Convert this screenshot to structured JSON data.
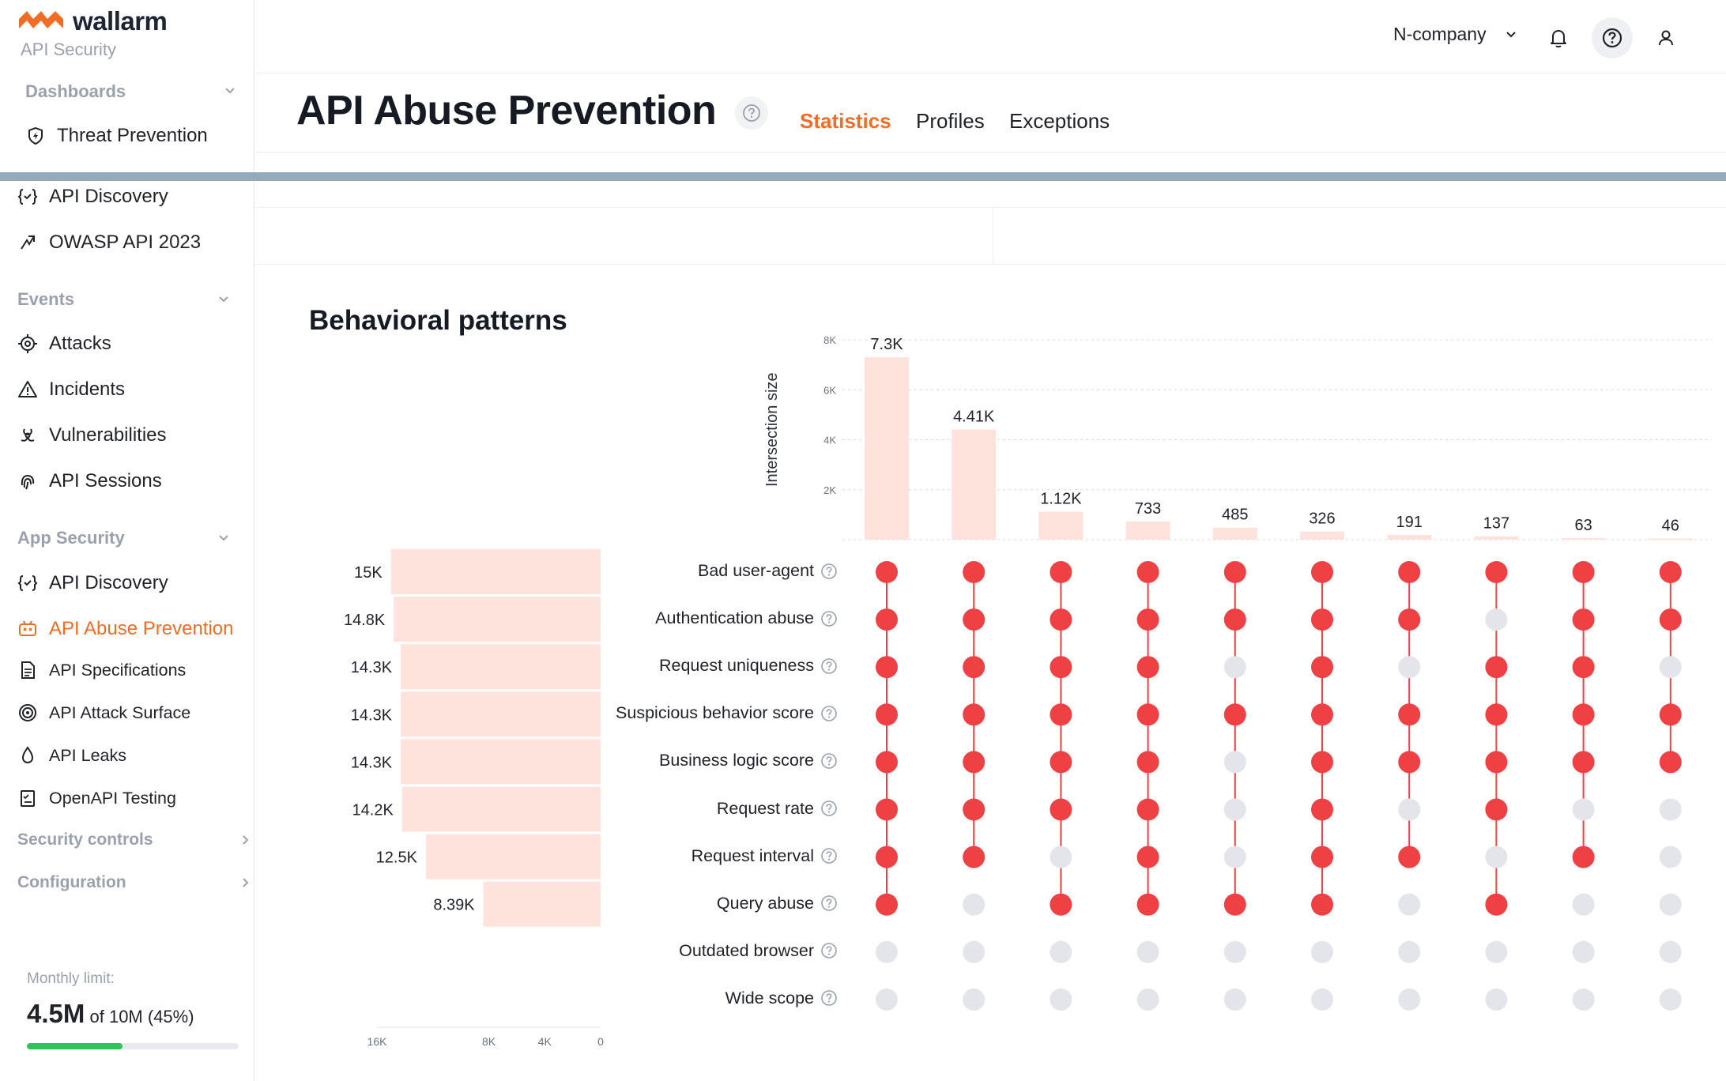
{
  "brand": {
    "name": "wallarm",
    "subtitle": "API Security"
  },
  "sidebar": {
    "sections": [
      {
        "label": "Dashboards"
      },
      {
        "label": "Events"
      },
      {
        "label": "App Security"
      }
    ],
    "items": [
      {
        "label": "Threat Prevention",
        "icon": "shield-icon"
      },
      {
        "label": "API Discovery",
        "icon": "api-discovery-icon"
      },
      {
        "label": "OWASP API 2023",
        "icon": "owasp-icon"
      },
      {
        "label": "Attacks",
        "icon": "target-icon"
      },
      {
        "label": "Incidents",
        "icon": "warning-icon"
      },
      {
        "label": "Vulnerabilities",
        "icon": "biohazard-icon"
      },
      {
        "label": "API Sessions",
        "icon": "fingerprint-icon"
      },
      {
        "label": "API Discovery",
        "icon": "api-discovery-icon"
      },
      {
        "label": "API Abuse Prevention",
        "icon": "robot-icon",
        "active": true
      },
      {
        "label": "API Specifications",
        "icon": "document-icon"
      },
      {
        "label": "API Attack Surface",
        "icon": "radar-icon"
      },
      {
        "label": "API Leaks",
        "icon": "drop-icon"
      },
      {
        "label": "OpenAPI Testing",
        "icon": "checklist-icon"
      }
    ],
    "collapsed": [
      {
        "label": "Security controls"
      },
      {
        "label": "Configuration"
      }
    ],
    "limit": {
      "label": "Monthly limit:",
      "value": "4.5M",
      "rest": "of 10M (45%)",
      "fraction": 0.45
    }
  },
  "header": {
    "company": "N-company"
  },
  "page": {
    "title": "API Abuse Prevention",
    "tabs": [
      "Statistics",
      "Profiles",
      "Exceptions"
    ],
    "active_tab": "Statistics",
    "section_title": "Behavioral patterns"
  },
  "colors": {
    "accent": "#f26c24",
    "dot_on": "#ef4044",
    "dot_off": "#e3e5ea",
    "bar": "#fde3dc",
    "progress": "#2ec45b"
  },
  "chart_data": {
    "type": "upset",
    "ylabel": "Intersection size",
    "intersection_axis": {
      "ticks": [
        "2K",
        "4K",
        "6K",
        "8K"
      ],
      "tick_values": [
        2000,
        4000,
        6000,
        8000
      ],
      "ylim": [
        0,
        8000
      ]
    },
    "intersections": [
      {
        "value": 7300,
        "label": "7.3K"
      },
      {
        "value": 4410,
        "label": "4.41K"
      },
      {
        "value": 1120,
        "label": "1.12K"
      },
      {
        "value": 733,
        "label": "733"
      },
      {
        "value": 485,
        "label": "485"
      },
      {
        "value": 326,
        "label": "326"
      },
      {
        "value": 191,
        "label": "191"
      },
      {
        "value": 137,
        "label": "137"
      },
      {
        "value": 63,
        "label": "63"
      },
      {
        "value": 46,
        "label": "46"
      }
    ],
    "sets": [
      {
        "name": "Bad user-agent",
        "size": 15000,
        "label": "15K"
      },
      {
        "name": "Authentication abuse",
        "size": 14800,
        "label": "14.8K"
      },
      {
        "name": "Request uniqueness",
        "size": 14300,
        "label": "14.3K"
      },
      {
        "name": "Suspicious behavior score",
        "size": 14300,
        "label": "14.3K"
      },
      {
        "name": "Business logic score",
        "size": 14300,
        "label": "14.3K"
      },
      {
        "name": "Request rate",
        "size": 14200,
        "label": "14.2K"
      },
      {
        "name": "Request interval",
        "size": 12500,
        "label": "12.5K"
      },
      {
        "name": "Query abuse",
        "size": 8390,
        "label": "8.39K"
      },
      {
        "name": "Outdated browser",
        "size": null,
        "label": ""
      },
      {
        "name": "Wide scope",
        "size": null,
        "label": ""
      }
    ],
    "set_axis": {
      "ticks": [
        "16K",
        "8K",
        "4K",
        "0"
      ],
      "tick_values": [
        16000,
        8000,
        4000,
        0
      ],
      "xlim": [
        16000,
        0
      ]
    },
    "matrix": [
      [
        1,
        1,
        1,
        1,
        1,
        1,
        1,
        1,
        0,
        0
      ],
      [
        1,
        1,
        1,
        1,
        1,
        1,
        1,
        0,
        0,
        0
      ],
      [
        1,
        1,
        1,
        1,
        1,
        1,
        0,
        1,
        0,
        0
      ],
      [
        1,
        1,
        1,
        1,
        1,
        1,
        1,
        1,
        0,
        0
      ],
      [
        1,
        1,
        0,
        1,
        0,
        0,
        0,
        1,
        0,
        0
      ],
      [
        1,
        1,
        1,
        1,
        1,
        1,
        1,
        1,
        0,
        0
      ],
      [
        1,
        1,
        0,
        1,
        1,
        0,
        1,
        0,
        0,
        0
      ],
      [
        1,
        0,
        1,
        1,
        1,
        1,
        0,
        1,
        0,
        0
      ],
      [
        1,
        1,
        1,
        1,
        1,
        0,
        1,
        0,
        0,
        0
      ],
      [
        1,
        1,
        0,
        1,
        1,
        0,
        0,
        0,
        0,
        0
      ]
    ]
  }
}
